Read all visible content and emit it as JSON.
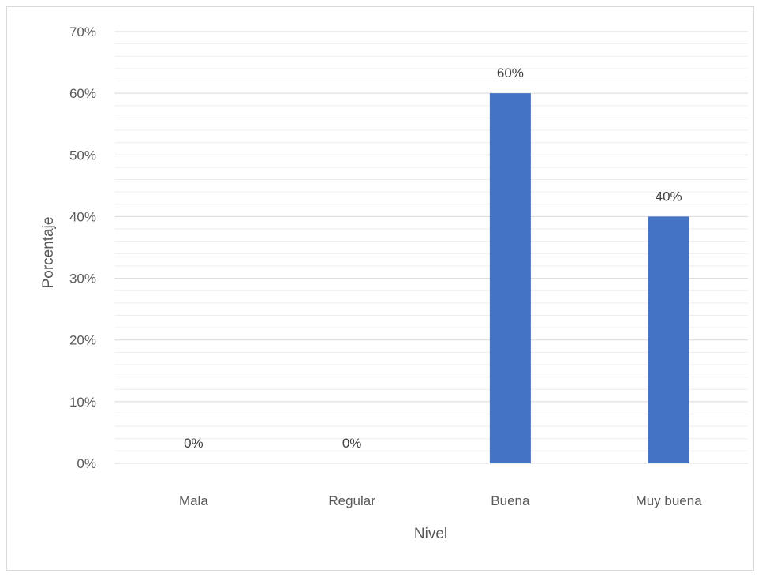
{
  "chart_data": {
    "type": "bar",
    "categories": [
      "Mala",
      "Regular",
      "Buena",
      "Muy buena"
    ],
    "values": [
      0,
      0,
      60,
      40
    ],
    "data_labels": [
      "0%",
      "0%",
      "60%",
      "40%"
    ],
    "title": "",
    "xlabel": "Nivel",
    "ylabel": "Porcentaje",
    "ylim": [
      0,
      70
    ],
    "yticks": [
      0,
      10,
      20,
      30,
      40,
      50,
      60,
      70
    ],
    "ytick_labels": [
      "0%",
      "10%",
      "20%",
      "30%",
      "40%",
      "50%",
      "60%",
      "70%"
    ],
    "grid": true,
    "legend": "none",
    "bar_color": "#4472c4",
    "gridline_color": "#d9d9d9"
  }
}
